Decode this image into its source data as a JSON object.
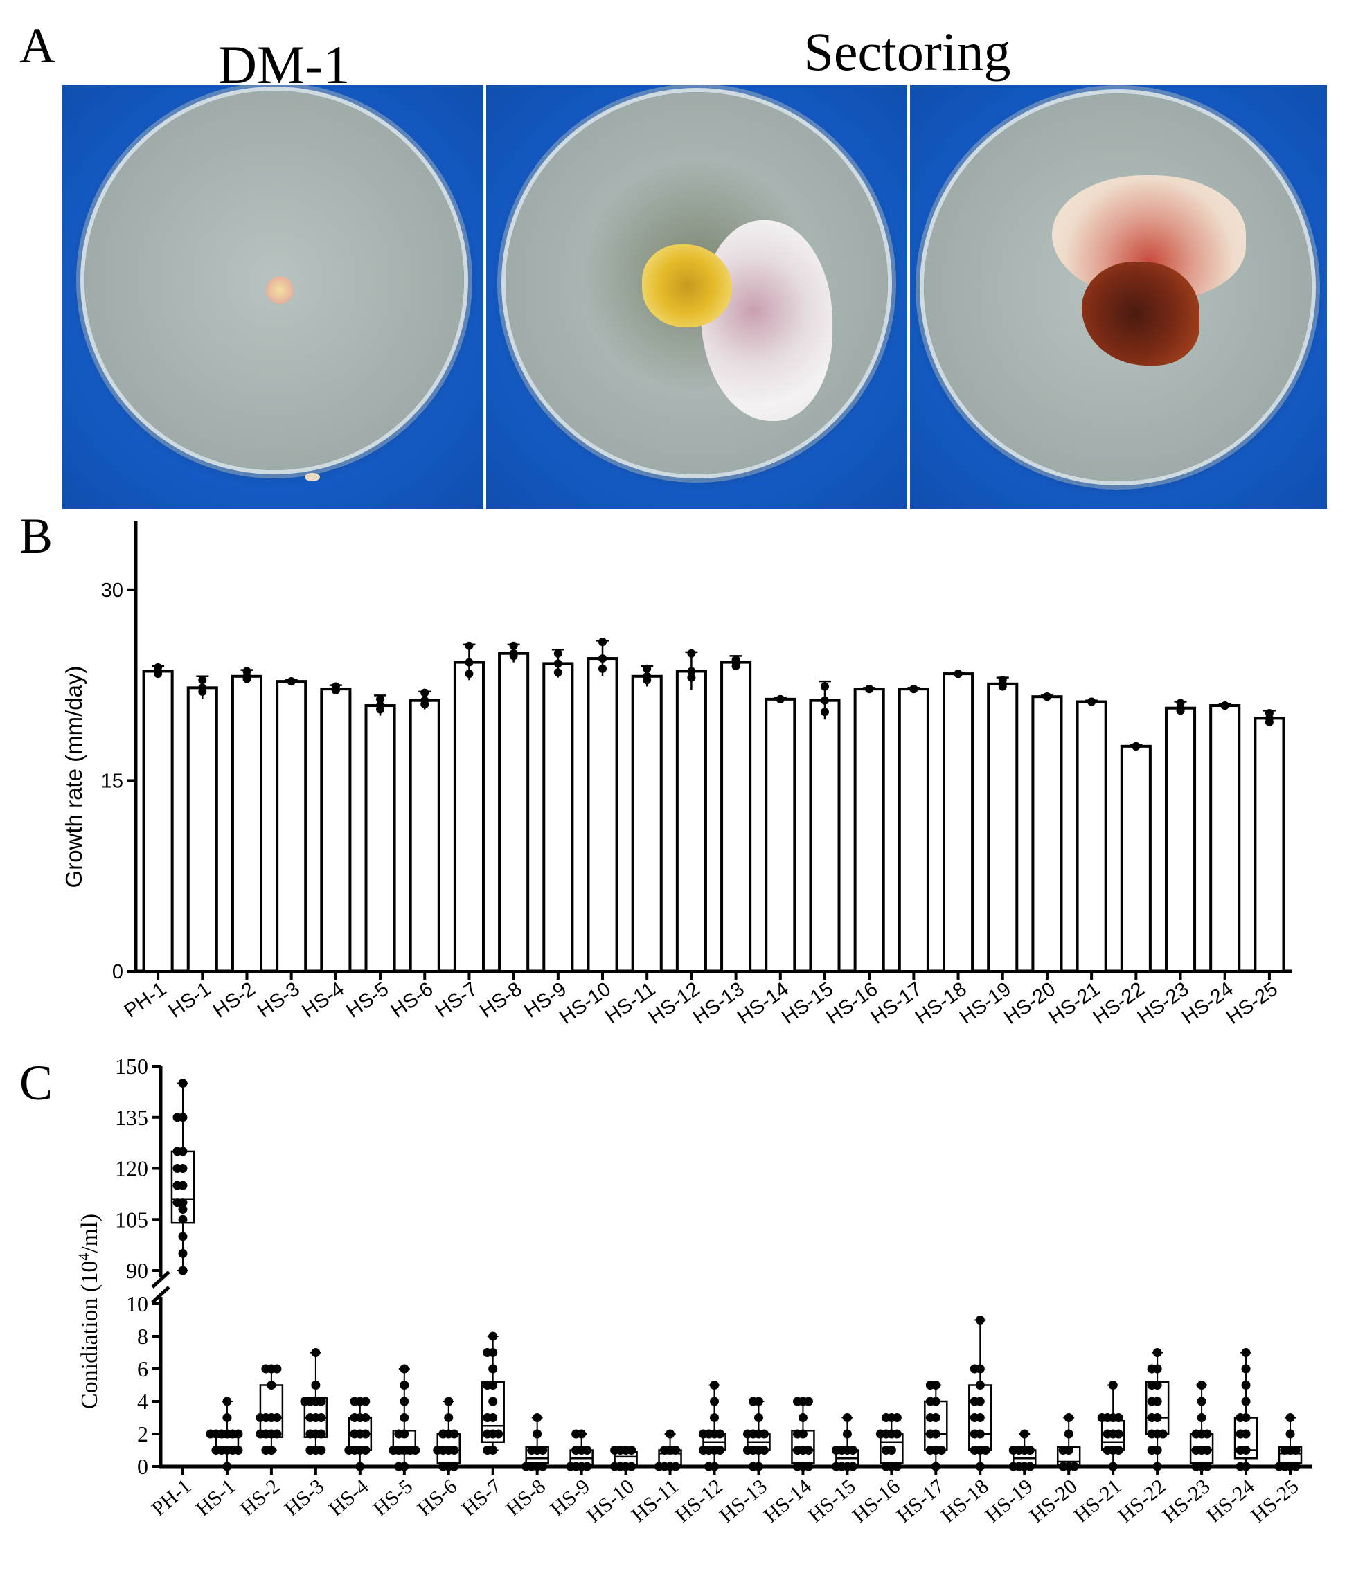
{
  "panel_labels": {
    "a": "A",
    "b": "B",
    "c": "C"
  },
  "photos": {
    "title_left": "DM-1",
    "title_right": "Sectoring"
  },
  "chart_data": [
    {
      "type": "bar",
      "panel": "B",
      "ylabel": "Growth rate (mm/day)",
      "xlabel": "",
      "ylim": [
        0,
        35
      ],
      "yticks": [
        0,
        15,
        30
      ],
      "categories": [
        "PH-1",
        "HS-1",
        "HS-2",
        "HS-3",
        "HS-4",
        "HS-5",
        "HS-6",
        "HS-7",
        "HS-8",
        "HS-9",
        "HS-10",
        "HS-11",
        "HS-12",
        "HS-13",
        "HS-14",
        "HS-15",
        "HS-16",
        "HS-17",
        "HS-18",
        "HS-19",
        "HS-20",
        "HS-21",
        "HS-22",
        "HS-23",
        "HS-24",
        "HS-25"
      ],
      "values": [
        23.6,
        22.3,
        23.2,
        22.8,
        22.2,
        20.9,
        21.3,
        24.3,
        25.0,
        24.2,
        24.6,
        23.2,
        23.6,
        24.3,
        21.4,
        21.3,
        22.2,
        22.2,
        23.4,
        22.6,
        21.6,
        21.2,
        17.7,
        20.7,
        20.9,
        19.9
      ],
      "errors": [
        0.4,
        0.9,
        0.5,
        0.1,
        0.3,
        0.8,
        0.7,
        1.4,
        0.7,
        1.1,
        1.4,
        0.8,
        1.5,
        0.5,
        0.1,
        1.5,
        0.1,
        0.1,
        0.1,
        0.5,
        0.1,
        0.1,
        0.1,
        0.5,
        0.1,
        0.6
      ],
      "points": [
        [
          23.6,
          23.9,
          23.4
        ],
        [
          22.3,
          22.9,
          22.0
        ],
        [
          23.2,
          23.6,
          23.0
        ],
        [
          22.8,
          22.8,
          22.8
        ],
        [
          22.2,
          22.4,
          22.1
        ],
        [
          20.9,
          21.4,
          20.6
        ],
        [
          21.3,
          21.9,
          21.0
        ],
        [
          24.3,
          25.6,
          23.4
        ],
        [
          25.0,
          25.6,
          24.8
        ],
        [
          24.2,
          25.0,
          23.5
        ],
        [
          24.6,
          25.9,
          23.8
        ],
        [
          23.2,
          23.8,
          22.9
        ],
        [
          23.6,
          25.0,
          23.1
        ],
        [
          24.3,
          24.5,
          24.0
        ],
        [
          21.4,
          21.4,
          21.4
        ],
        [
          21.3,
          22.4,
          20.4
        ],
        [
          22.2,
          22.2,
          22.2
        ],
        [
          22.2,
          22.2,
          22.2
        ],
        [
          23.4,
          23.4,
          23.4
        ],
        [
          22.6,
          22.9,
          22.4
        ],
        [
          21.6,
          21.6,
          21.6
        ],
        [
          21.2,
          21.2,
          21.2
        ],
        [
          17.7,
          17.7,
          17.7
        ],
        [
          20.7,
          21.1,
          20.5
        ],
        [
          20.9,
          20.9,
          20.9
        ],
        [
          19.9,
          20.3,
          19.6
        ]
      ]
    },
    {
      "type": "box",
      "panel": "C",
      "ylabel_prefix": "Conidiation (10",
      "ylabel_sup": "4",
      "ylabel_suffix": "/ml)",
      "axis_break": true,
      "upper_ylim": [
        90,
        150
      ],
      "upper_yticks": [
        90,
        105,
        120,
        135,
        150
      ],
      "lower_ylim": [
        0,
        10
      ],
      "lower_yticks": [
        0,
        2,
        4,
        6,
        8,
        10
      ],
      "categories": [
        "PH-1",
        "HS-1",
        "HS-2",
        "HS-3",
        "HS-4",
        "HS-5",
        "HS-6",
        "HS-7",
        "HS-8",
        "HS-9",
        "HS-10",
        "HS-11",
        "HS-12",
        "HS-13",
        "HS-14",
        "HS-15",
        "HS-16",
        "HS-17",
        "HS-18",
        "HS-19",
        "HS-20",
        "HS-21",
        "HS-22",
        "HS-23",
        "HS-24",
        "HS-25"
      ],
      "boxes": [
        {
          "min": 90,
          "q1": 104,
          "median": 111,
          "q3": 125,
          "max": 145,
          "points": [
            145,
            135,
            135,
            125,
            125,
            120,
            120,
            115,
            115,
            110,
            110,
            108,
            105,
            100,
            95,
            90
          ]
        },
        {
          "min": 0,
          "q1": 1,
          "median": 1.8,
          "q3": 2,
          "max": 4,
          "points": [
            4,
            3,
            2,
            2,
            2,
            2,
            2,
            2,
            1,
            1,
            1,
            1,
            1,
            0
          ]
        },
        {
          "min": 1,
          "q1": 1.8,
          "median": 3,
          "q3": 5,
          "max": 6,
          "points": [
            6,
            6,
            6,
            5,
            3,
            3,
            3,
            3,
            2,
            2,
            2,
            2,
            1,
            1
          ]
        },
        {
          "min": 1,
          "q1": 1.8,
          "median": 3,
          "q3": 4.2,
          "max": 7,
          "points": [
            7,
            5,
            4,
            4,
            4,
            4,
            3,
            3,
            3,
            2,
            2,
            2,
            1,
            1,
            1
          ]
        },
        {
          "min": 0,
          "q1": 1,
          "median": 2,
          "q3": 3,
          "max": 4,
          "points": [
            4,
            4,
            4,
            3,
            3,
            3,
            2,
            2,
            2,
            1,
            1,
            1,
            1,
            0
          ]
        },
        {
          "min": 0,
          "q1": 0.8,
          "median": 1.2,
          "q3": 2.2,
          "max": 6,
          "points": [
            6,
            5,
            4,
            3,
            2,
            2,
            1,
            1,
            1,
            1,
            1,
            0,
            0
          ]
        },
        {
          "min": 0,
          "q1": 0.2,
          "median": 1,
          "q3": 2,
          "max": 4,
          "points": [
            4,
            3,
            2,
            2,
            2,
            1,
            1,
            1,
            1,
            0,
            0,
            0
          ]
        },
        {
          "min": 1,
          "q1": 1.5,
          "median": 2.5,
          "q3": 5.2,
          "max": 8,
          "points": [
            8,
            7,
            7,
            6,
            5,
            5,
            4,
            3,
            3,
            2,
            2,
            2,
            1,
            1
          ]
        },
        {
          "min": 0,
          "q1": 0.2,
          "median": 0.5,
          "q3": 1.2,
          "max": 3,
          "points": [
            3,
            2,
            1,
            1,
            1,
            0,
            0,
            0,
            0
          ]
        },
        {
          "min": 0,
          "q1": 0.1,
          "median": 0.5,
          "q3": 1,
          "max": 2,
          "points": [
            2,
            2,
            1,
            1,
            1,
            0,
            0,
            0,
            0
          ]
        },
        {
          "min": 0,
          "q1": 0.1,
          "median": 0.6,
          "q3": 0.9,
          "max": 1,
          "points": [
            1,
            1,
            1,
            1,
            0,
            0,
            0,
            0
          ]
        },
        {
          "min": 0,
          "q1": 0.1,
          "median": 0.8,
          "q3": 1,
          "max": 2,
          "points": [
            2,
            1,
            1,
            1,
            0,
            0,
            0,
            0
          ]
        },
        {
          "min": 0,
          "q1": 1,
          "median": 1.5,
          "q3": 2,
          "max": 5,
          "points": [
            5,
            4,
            3,
            2,
            2,
            2,
            2,
            1,
            1,
            1,
            1,
            0,
            0
          ]
        },
        {
          "min": 0,
          "q1": 1,
          "median": 1.5,
          "q3": 2,
          "max": 4,
          "points": [
            4,
            4,
            3,
            2,
            2,
            2,
            2,
            1,
            1,
            1,
            1,
            0,
            0
          ]
        },
        {
          "min": 0,
          "q1": 0.2,
          "median": 1,
          "q3": 2.2,
          "max": 4,
          "points": [
            4,
            4,
            4,
            3,
            2,
            2,
            1,
            1,
            1,
            0,
            0,
            0
          ]
        },
        {
          "min": 0,
          "q1": 0.1,
          "median": 0.5,
          "q3": 1,
          "max": 3,
          "points": [
            3,
            2,
            1,
            1,
            1,
            1,
            0,
            0,
            0,
            0
          ]
        },
        {
          "min": 0,
          "q1": 0.2,
          "median": 1.5,
          "q3": 2,
          "max": 3,
          "points": [
            3,
            3,
            3,
            2,
            2,
            2,
            2,
            1,
            1,
            0,
            0,
            0
          ]
        },
        {
          "min": 0,
          "q1": 1,
          "median": 2,
          "q3": 4,
          "max": 5,
          "points": [
            5,
            5,
            4,
            4,
            3,
            3,
            2,
            2,
            1,
            1,
            1,
            0
          ]
        },
        {
          "min": 0,
          "q1": 1,
          "median": 2,
          "q3": 5,
          "max": 9,
          "points": [
            9,
            6,
            6,
            5,
            4,
            4,
            3,
            3,
            2,
            2,
            1,
            1,
            1,
            0
          ]
        },
        {
          "min": 0,
          "q1": 0.1,
          "median": 0.5,
          "q3": 1,
          "max": 2,
          "points": [
            2,
            1,
            1,
            1,
            1,
            0,
            0,
            0,
            0
          ]
        },
        {
          "min": 0,
          "q1": 0.1,
          "median": 0.3,
          "q3": 1.2,
          "max": 3,
          "points": [
            3,
            2,
            1,
            1,
            0,
            0,
            0
          ]
        },
        {
          "min": 0,
          "q1": 1,
          "median": 1.5,
          "q3": 2.8,
          "max": 5,
          "points": [
            5,
            3,
            3,
            3,
            3,
            2,
            2,
            2,
            1,
            1,
            1,
            0
          ]
        },
        {
          "min": 0,
          "q1": 2,
          "median": 3,
          "q3": 5.2,
          "max": 7,
          "points": [
            7,
            6,
            6,
            5,
            5,
            4,
            4,
            3,
            3,
            2,
            2,
            2,
            1,
            1,
            0
          ]
        },
        {
          "min": 0,
          "q1": 0.2,
          "median": 1,
          "q3": 2,
          "max": 5,
          "points": [
            5,
            4,
            3,
            2,
            2,
            2,
            1,
            1,
            1,
            0,
            0,
            0
          ]
        },
        {
          "min": 0,
          "q1": 0.5,
          "median": 1,
          "q3": 3,
          "max": 7,
          "points": [
            7,
            6,
            5,
            4,
            3,
            3,
            2,
            2,
            1,
            1,
            0,
            0
          ]
        },
        {
          "min": 0,
          "q1": 0.2,
          "median": 0.8,
          "q3": 1.2,
          "max": 3,
          "points": [
            3,
            2,
            1,
            1,
            1,
            0,
            0,
            0,
            0
          ]
        }
      ],
      "empty_categories": [
        "PH-1"
      ]
    }
  ]
}
